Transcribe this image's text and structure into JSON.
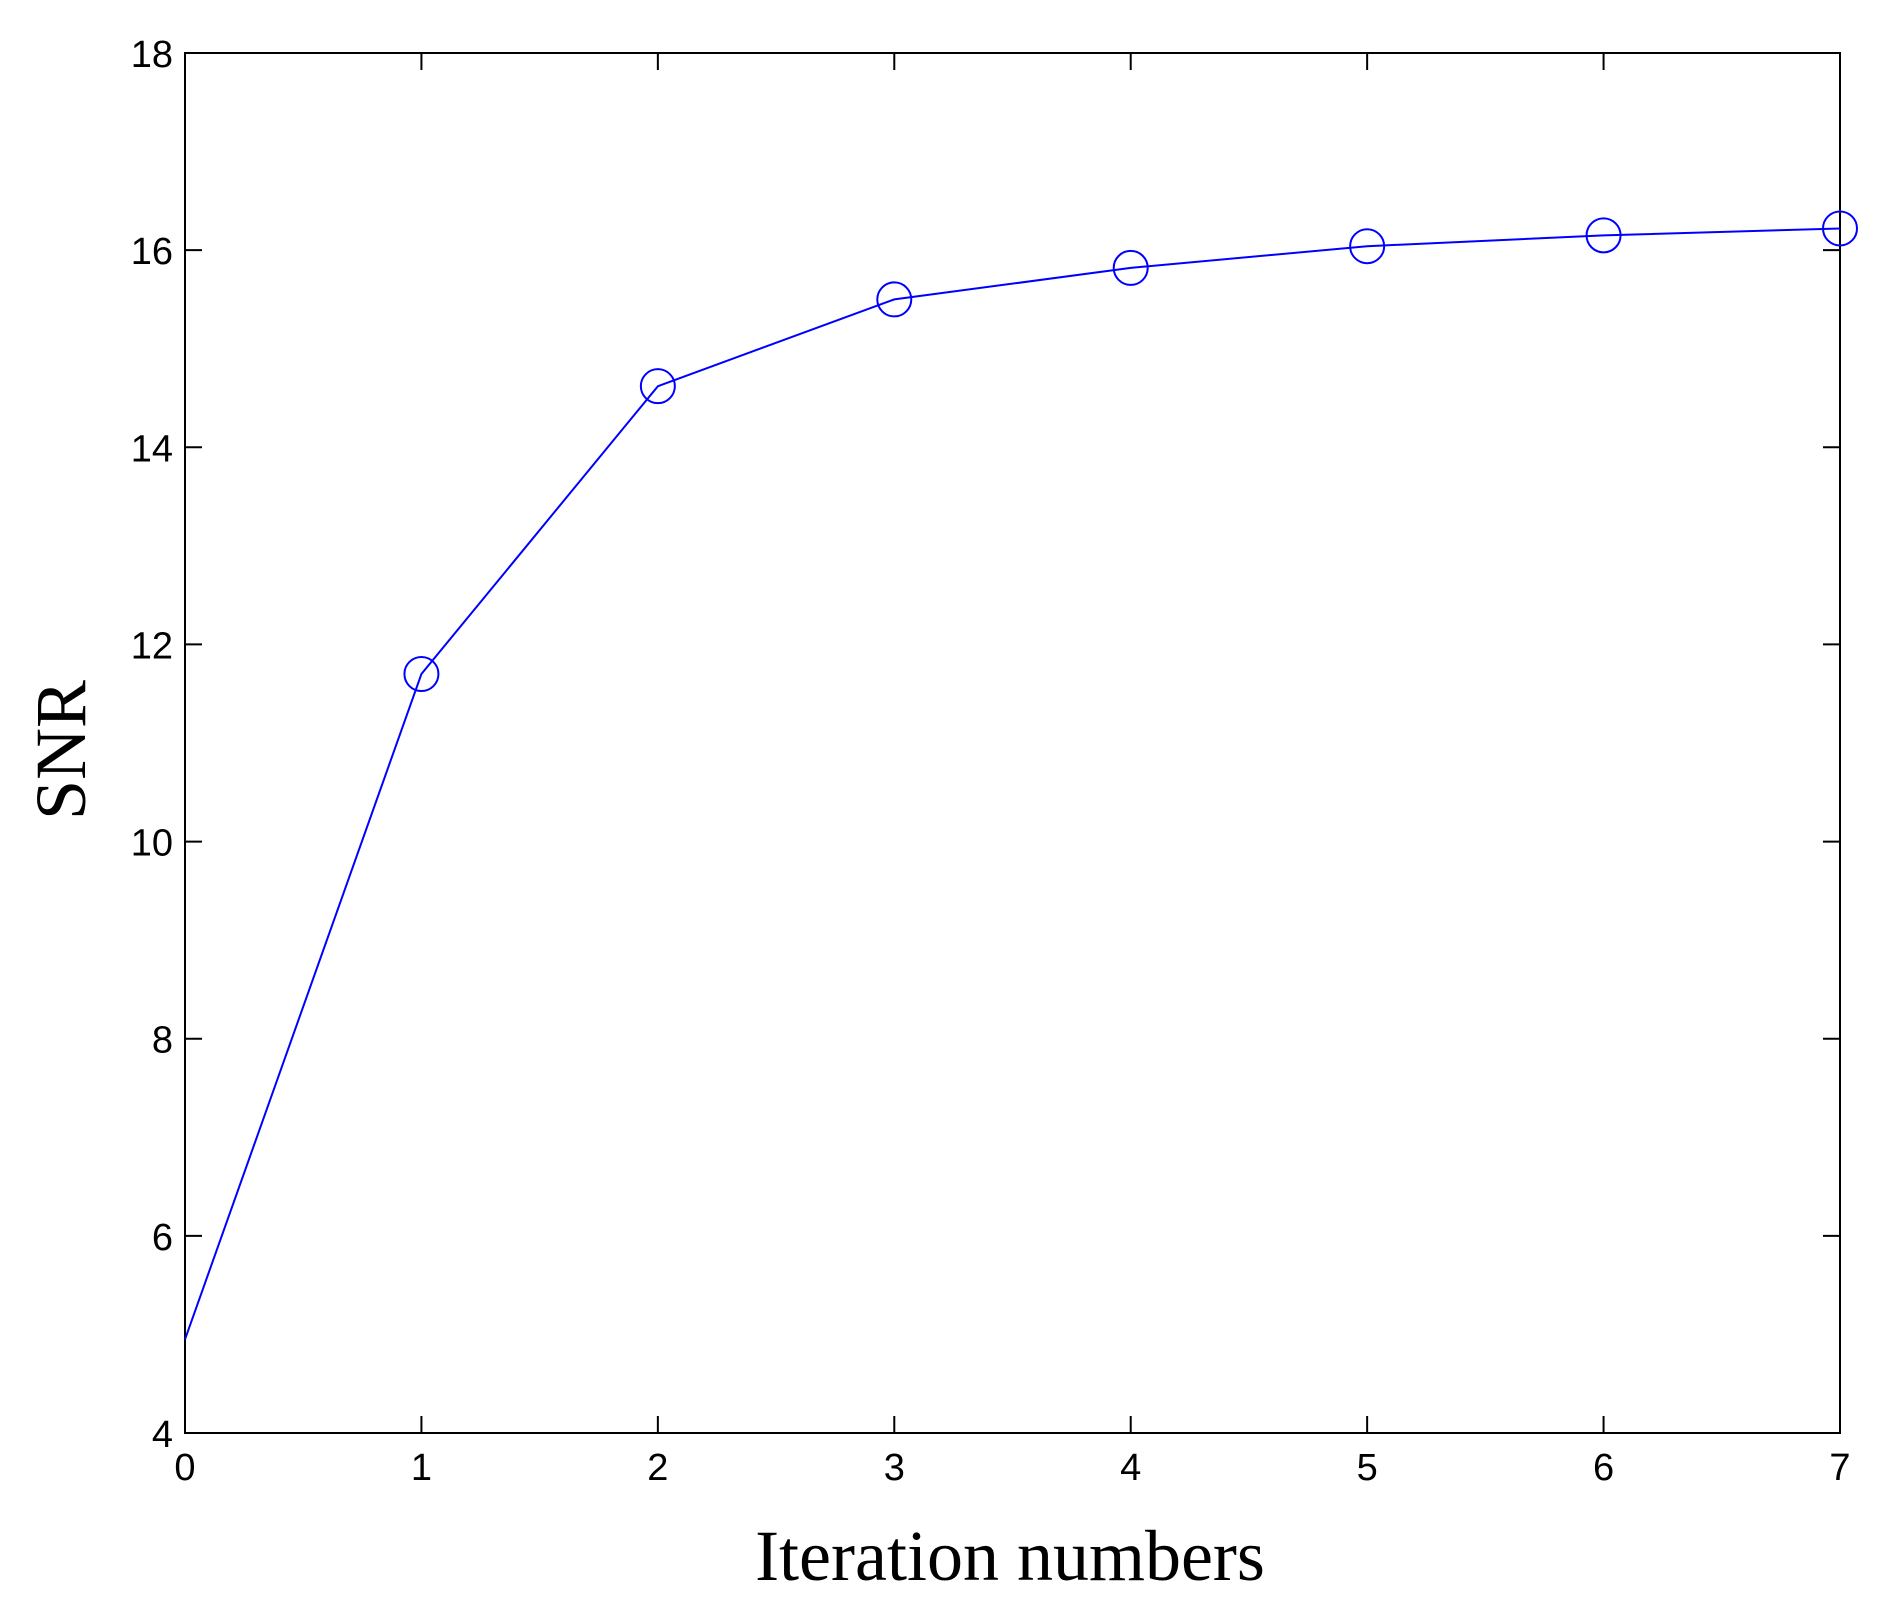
{
  "chart_data": {
    "type": "line",
    "title": "",
    "xlabel": "Iteration numbers",
    "ylabel": "SNR",
    "xlim": [
      0,
      7
    ],
    "ylim": [
      4,
      18
    ],
    "xticks": [
      0,
      1,
      2,
      3,
      4,
      5,
      6,
      7
    ],
    "yticks": [
      4,
      6,
      8,
      10,
      12,
      14,
      16,
      18
    ],
    "grid": false,
    "legend": "none",
    "series": [
      {
        "x": [
          0,
          1,
          2,
          3,
          4,
          5,
          6,
          7
        ],
        "y": [
          4.95,
          11.7,
          14.62,
          15.5,
          15.82,
          16.04,
          16.15,
          16.22
        ],
        "color": "#0000ff",
        "marker": "circle",
        "marker_start_index": 1
      }
    ]
  }
}
